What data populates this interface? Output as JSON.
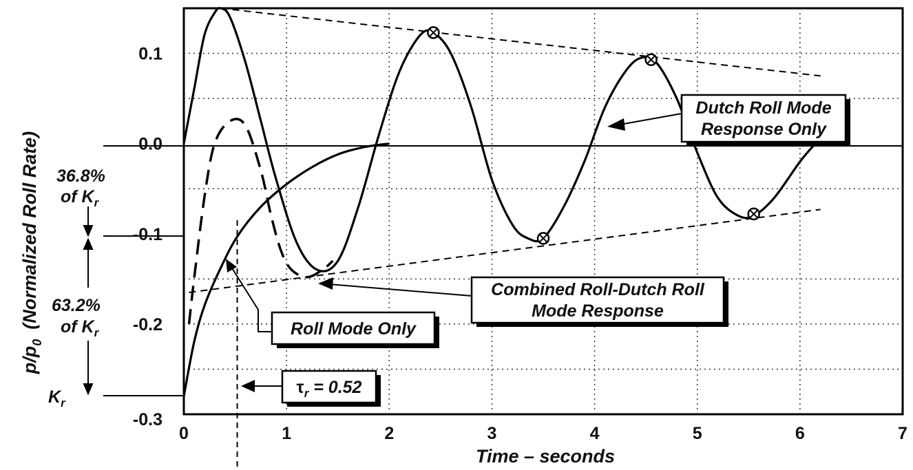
{
  "chart_data": {
    "type": "line",
    "xlabel": "Time – seconds",
    "ylabel": "p/p",
    "ylabel_sub": "0",
    "ylabel_note": "(Normalized Roll Rate)",
    "xlim": [
      0,
      7
    ],
    "ylim": [
      -0.3,
      0.15
    ],
    "x_ticks": [
      "0",
      "1",
      "2",
      "3",
      "4",
      "5",
      "6",
      "7"
    ],
    "y_ticks": [
      "0.1",
      "0.0",
      "-0.1",
      "-0.2",
      "-0.3"
    ],
    "grid": true,
    "series": [
      {
        "style": "solid",
        "points": [
          [
            0,
            0
          ],
          [
            0.1,
            0.06
          ],
          [
            0.2,
            0.12
          ],
          [
            0.3,
            0.145
          ],
          [
            0.36,
            0.15
          ],
          [
            0.45,
            0.14
          ],
          [
            0.6,
            0.09
          ],
          [
            0.75,
            0.025
          ],
          [
            0.9,
            -0.04
          ],
          [
            1.1,
            -0.11
          ],
          [
            1.3,
            -0.14
          ],
          [
            1.5,
            -0.13
          ],
          [
            1.7,
            -0.07
          ],
          [
            1.9,
            0.01
          ],
          [
            2.1,
            0.08
          ],
          [
            2.3,
            0.12
          ],
          [
            2.43,
            0.123
          ],
          [
            2.6,
            0.1
          ],
          [
            2.8,
            0.04
          ],
          [
            3.0,
            -0.04
          ],
          [
            3.2,
            -0.09
          ],
          [
            3.35,
            -0.105
          ],
          [
            3.5,
            -0.105
          ],
          [
            3.7,
            -0.07
          ],
          [
            3.9,
            -0.02
          ],
          [
            4.1,
            0.04
          ],
          [
            4.3,
            0.08
          ],
          [
            4.45,
            0.095
          ],
          [
            4.6,
            0.09
          ],
          [
            4.8,
            0.05
          ],
          [
            5.0,
            -0.01
          ],
          [
            5.2,
            -0.06
          ],
          [
            5.4,
            -0.08
          ],
          [
            5.55,
            -0.08
          ],
          [
            5.75,
            -0.06
          ],
          [
            6.0,
            -0.02
          ],
          [
            6.15,
            0.0
          ]
        ]
      },
      {
        "style": "dashed",
        "points": [
          [
            0.05,
            -0.2
          ],
          [
            0.1,
            -0.15
          ],
          [
            0.2,
            -0.06
          ],
          [
            0.3,
            0.0
          ],
          [
            0.45,
            0.025
          ],
          [
            0.6,
            0.02
          ],
          [
            0.75,
            -0.03
          ],
          [
            0.85,
            -0.08
          ],
          [
            0.95,
            -0.12
          ],
          [
            1.05,
            -0.14
          ],
          [
            1.2,
            -0.148
          ],
          [
            1.35,
            -0.14
          ],
          [
            1.45,
            -0.13
          ]
        ]
      },
      {
        "style": "solid",
        "points": [
          [
            0,
            -0.28
          ],
          [
            0.1,
            -0.22
          ],
          [
            0.2,
            -0.18
          ],
          [
            0.35,
            -0.14
          ],
          [
            0.52,
            -0.103
          ],
          [
            0.75,
            -0.07
          ],
          [
            1.0,
            -0.045
          ],
          [
            1.25,
            -0.026
          ],
          [
            1.5,
            -0.012
          ],
          [
            1.75,
            -0.004
          ],
          [
            2.0,
            0.0
          ]
        ]
      }
    ],
    "envelope_lines": [
      {
        "style": "dashed",
        "points": [
          [
            0.36,
            0.15
          ],
          [
            6.2,
            0.075
          ]
        ]
      },
      {
        "style": "dashed",
        "points": [
          [
            0.05,
            -0.165
          ],
          [
            6.2,
            -0.073
          ]
        ]
      }
    ],
    "markers": [
      [
        2.43,
        0.123
      ],
      [
        4.55,
        0.093
      ],
      [
        3.5,
        -0.105
      ],
      [
        5.55,
        -0.078
      ]
    ],
    "tau_line_x": 0.52,
    "left_annotations": {
      "pct_top_line1": "36.8%",
      "pct_top_line2": "of K",
      "pct_top_sub": "r",
      "pct_bottom_line1": "63.2%",
      "pct_bottom_line2": "of K",
      "pct_bottom_sub": "r",
      "kr": "K",
      "kr_sub": "r"
    },
    "callouts": {
      "dutch_roll_line1": "Dutch Roll Mode",
      "dutch_roll_line2": "Response Only",
      "combined_line1": "Combined Roll-Dutch Roll",
      "combined_line2": "Mode Response",
      "roll_mode": "Roll Mode Only",
      "tau_symbol": "τ",
      "tau_sub": "r",
      "tau_value": " = 0.52"
    }
  }
}
